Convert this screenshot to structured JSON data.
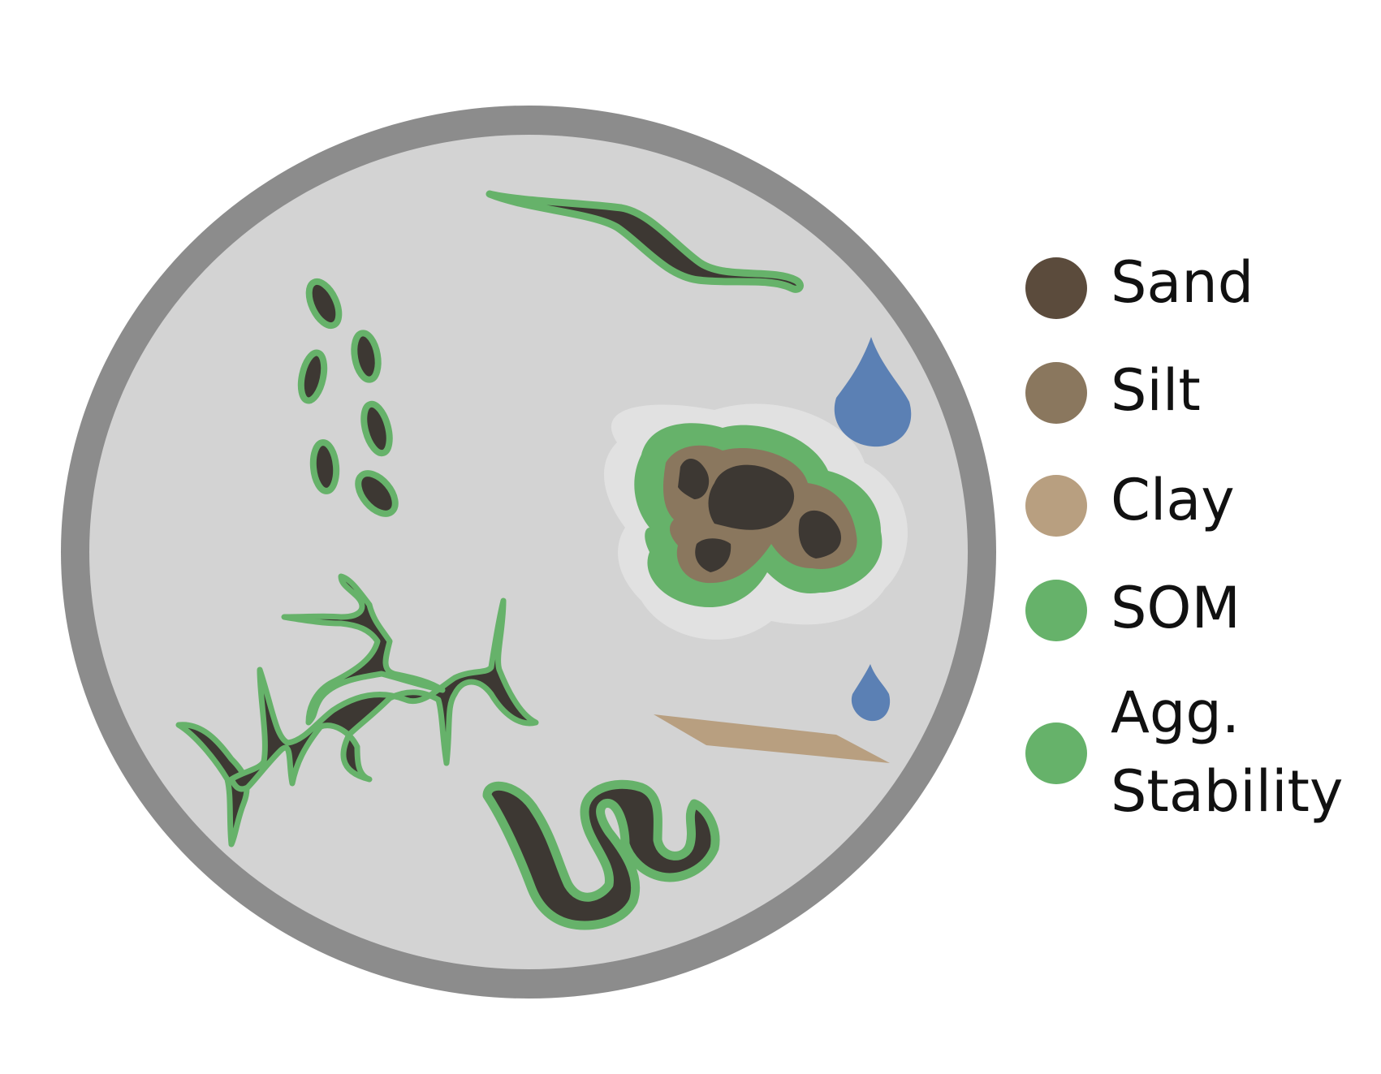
{
  "legend": {
    "items": [
      {
        "label": "Sand",
        "color": "#5b4b3c"
      },
      {
        "label": "Silt",
        "color": "#8a775e"
      },
      {
        "label": "Clay",
        "color": "#b89f80"
      },
      {
        "label": "SOM",
        "color": "#66b26a"
      },
      {
        "label": "Agg.",
        "label_line2": "Stability",
        "color": "#66b26a"
      }
    ]
  },
  "colors": {
    "ring": "#8c8c8c",
    "inner": "#d3d3d3",
    "halo": "#e1e1e1",
    "dark": "#3d3833",
    "green": "#66b26a",
    "silt": "#8a775e",
    "clay": "#b89f80",
    "water": "#5b80b4"
  }
}
